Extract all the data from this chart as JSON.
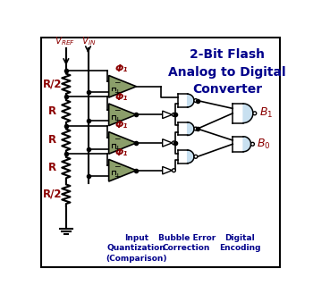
{
  "title": "2-Bit Flash\nAnalog to Digital\nConverter",
  "title_color": "#00008B",
  "title_fontsize": 10,
  "bg_color": "#FFFFFF",
  "border_color": "#000000",
  "label_color_dark_red": "#8B0000",
  "label_color_blue": "#00008B",
  "resistor_labels": [
    "R/2",
    "R",
    "R",
    "R",
    "R/2"
  ],
  "comparator_fill": "#8B9E6A",
  "gate_fill": "#C8E0F0",
  "bottom_labels": [
    "Input\nQuantization\n(Comparison)",
    "Bubble Error\nCorrection",
    "Digital\nEncoding"
  ],
  "phi_label": "Φ₁"
}
